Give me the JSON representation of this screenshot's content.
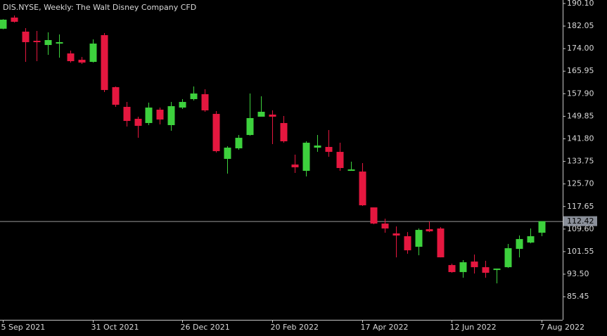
{
  "chart_data": {
    "type": "candlestick",
    "title": "DIS.NYSE, Weekly:  The Walt Disney Company CFD",
    "categories": [
      "5 Sep 2021",
      null,
      null,
      null,
      null,
      null,
      null,
      null,
      "31 Oct 2021",
      null,
      null,
      null,
      null,
      null,
      null,
      null,
      "26 Dec 2021",
      null,
      null,
      null,
      null,
      null,
      null,
      null,
      "20 Feb 2022",
      null,
      null,
      null,
      null,
      null,
      null,
      null,
      "17 Apr 2022",
      null,
      null,
      null,
      null,
      null,
      null,
      null,
      "12 Jun 2022",
      null,
      null,
      null,
      null,
      null,
      null,
      null,
      "7 Aug 2022"
    ],
    "open": [
      181.1,
      185.08,
      180.06,
      176.8,
      175.29,
      175.8,
      172.28,
      170.02,
      169.27,
      178.81,
      160.24,
      153.21,
      148.95,
      147.44,
      152.21,
      146.69,
      152.96,
      155.97,
      157.73,
      150.7,
      134.64,
      138.41,
      143.17,
      149.7,
      150.45,
      147.44,
      132.63,
      130.38,
      138.66,
      138.91,
      137.15,
      130.38,
      130.12,
      117.33,
      111.56,
      108.04,
      107.04,
      103.27,
      109.55,
      109.8,
      96.75,
      94.24,
      98.0,
      95.99,
      94.99,
      95.99,
      102.52,
      104.78,
      108.29
    ],
    "high": [
      184.5,
      185.83,
      181.32,
      180.31,
      179.81,
      179.06,
      173.29,
      171.03,
      177.3,
      179.56,
      160.49,
      154.97,
      149.7,
      154.72,
      152.96,
      154.97,
      155.97,
      160.49,
      159.49,
      151.71,
      139.16,
      143.17,
      157.98,
      156.98,
      151.96,
      149.95,
      136.15,
      140.92,
      143.17,
      144.93,
      140.41,
      133.64,
      133.14,
      117.33,
      113.31,
      110.55,
      108.54,
      109.8,
      112.31,
      110.3,
      97.25,
      98.51,
      100.51,
      98.26,
      95.49,
      104.28,
      107.29,
      109.8,
      112.42
    ],
    "low": [
      180.9,
      183.3,
      169.27,
      169.52,
      171.78,
      170.78,
      169.02,
      168.52,
      169.02,
      158.48,
      153.21,
      146.19,
      142.17,
      146.69,
      146.94,
      144.68,
      152.46,
      155.47,
      151.46,
      136.9,
      129.37,
      137.9,
      142.92,
      149.7,
      139.91,
      140.41,
      129.62,
      128.37,
      137.15,
      135.39,
      130.38,
      130.38,
      117.83,
      111.31,
      108.29,
      99.51,
      100.77,
      100.26,
      108.54,
      99.51,
      93.99,
      92.23,
      93.74,
      92.23,
      90.22,
      95.74,
      99.51,
      104.53,
      107.04
    ],
    "close": [
      184.33,
      183.58,
      176.3,
      176.3,
      177.05,
      176.3,
      169.52,
      169.02,
      175.8,
      159.23,
      153.96,
      148.19,
      146.44,
      152.96,
      148.69,
      153.46,
      154.97,
      157.98,
      151.96,
      137.4,
      138.66,
      142.17,
      149.2,
      151.46,
      149.7,
      140.92,
      131.63,
      140.41,
      139.41,
      137.15,
      131.38,
      130.88,
      118.08,
      111.56,
      109.8,
      107.29,
      102.02,
      109.3,
      108.79,
      99.51,
      94.24,
      97.75,
      95.99,
      93.99,
      95.49,
      102.77,
      106.03,
      107.04,
      112.42
    ],
    "up_color": "#3dd13d",
    "down_color": "#e5173f",
    "current_price": 112.42,
    "ylim": [
      77.2,
      191.35
    ],
    "yticks": [
      {
        "value": 190.1,
        "label": "190.10"
      },
      182.05,
      {
        "value": 174,
        "label": "174.00"
      },
      165.95,
      {
        "value": 157.9,
        "label": "157.90"
      },
      149.85,
      {
        "value": 141.8,
        "label": "141.80"
      },
      133.75,
      {
        "value": 125.7,
        "label": "125.70"
      },
      117.65,
      {
        "value": 109.6,
        "label": "109.60"
      },
      101.55,
      {
        "value": 93.5,
        "label": "93.50"
      },
      85.45
    ]
  }
}
